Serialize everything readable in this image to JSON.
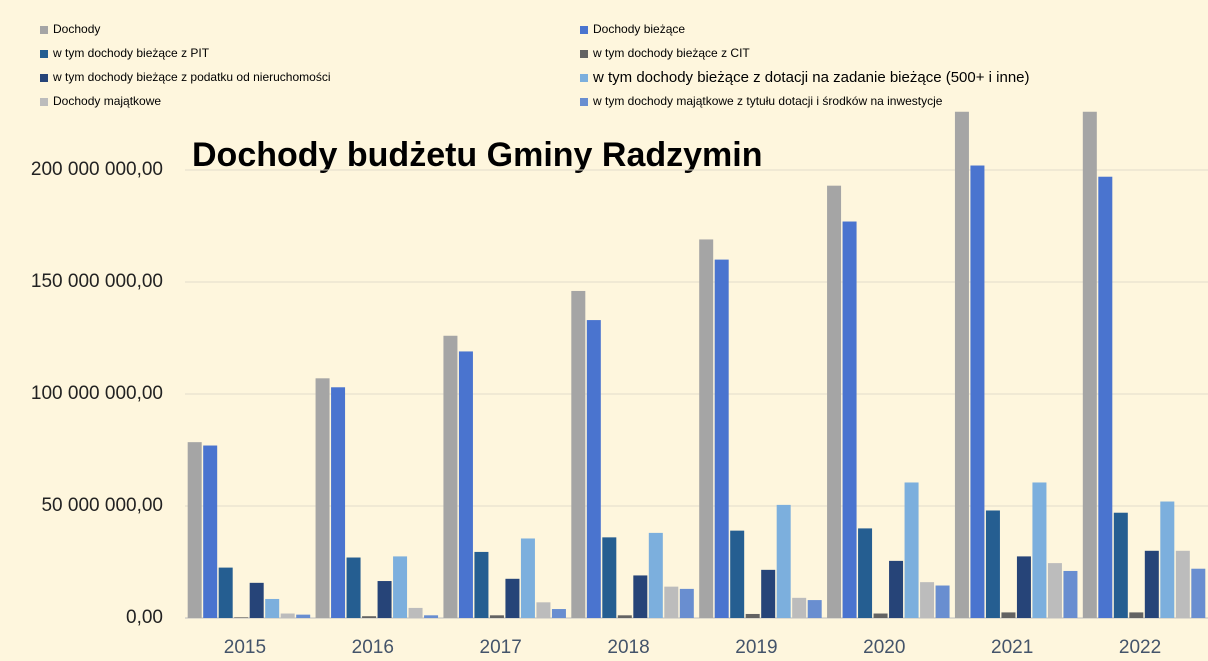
{
  "chart_data": {
    "type": "bar",
    "title": "Dochody budżetu Gminy Radzymin",
    "categories": [
      "2015",
      "2016",
      "2017",
      "2018",
      "2019",
      "2020",
      "2021",
      "2022"
    ],
    "series": [
      {
        "name": "Dochody",
        "color": "#a5a5a5",
        "values": [
          78500000,
          107000000,
          126000000,
          146000000,
          169000000,
          193000000,
          226000000,
          226000000
        ]
      },
      {
        "name": "Dochody bieżące",
        "color": "#4a74cf",
        "values": [
          77000000,
          103000000,
          119000000,
          133000000,
          160000000,
          177000000,
          202000000,
          197000000
        ]
      },
      {
        "name": "w tym dochody bieżące  z PIT",
        "color": "#255e91",
        "values": [
          22500000,
          27000000,
          29500000,
          36000000,
          39000000,
          40000000,
          48000000,
          47000000
        ]
      },
      {
        "name": "w tym dochody bieżące z CIT",
        "color": "#636363",
        "values": [
          300000,
          800000,
          1200000,
          1200000,
          1800000,
          2000000,
          2500000,
          2500000
        ]
      },
      {
        "name": "w tym dochody bieżące z podatku od nieruchomości",
        "color": "#264478",
        "values": [
          15700000,
          16500000,
          17500000,
          19000000,
          21500000,
          25500000,
          27500000,
          30000000
        ]
      },
      {
        "name": "w tym dochody bieżące z dotacji na zadanie bieżące (500+ i inne)",
        "color": "#7cafdd",
        "values": [
          8500000,
          27500000,
          35500000,
          38000000,
          50500000,
          60500000,
          60500000,
          52000000
        ]
      },
      {
        "name": "Dochody majątkowe",
        "color": "#bcbcbc",
        "values": [
          2000000,
          4500000,
          7000000,
          14000000,
          9000000,
          16000000,
          24500000,
          30000000
        ]
      },
      {
        "name": "w tym dochody majątkowe z tytułu dotacji i środków na inwestycje",
        "color": "#698ed0",
        "values": [
          1500000,
          1200000,
          4000000,
          13000000,
          8000000,
          14500000,
          21000000,
          22000000
        ]
      }
    ],
    "ylim": [
      0,
      225000000
    ],
    "yticks": [
      {
        "value": 0,
        "label": "0,00"
      },
      {
        "value": 50000000,
        "label": "50 000 000,00"
      },
      {
        "value": 100000000,
        "label": "100 000 000,00"
      },
      {
        "value": 150000000,
        "label": "150 000 000,00"
      },
      {
        "value": 200000000,
        "label": "200 000 000,00"
      }
    ],
    "grid": true
  }
}
